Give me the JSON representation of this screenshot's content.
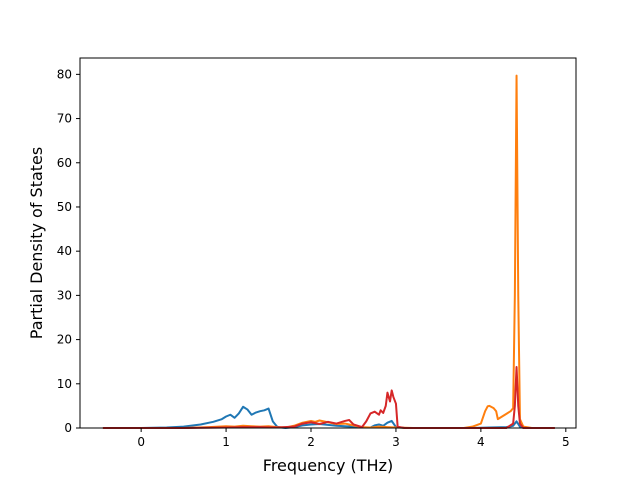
{
  "chart_data": {
    "type": "line",
    "title": "",
    "xlabel": "Frequency (THz)",
    "ylabel": "Partial Density of States",
    "xlim": [
      -0.72,
      5.12
    ],
    "ylim": [
      0,
      83.7
    ],
    "xticks": [
      0,
      1,
      2,
      3,
      4,
      5
    ],
    "yticks": [
      0,
      10,
      20,
      30,
      40,
      50,
      60,
      70,
      80
    ],
    "grid": false,
    "legend": "none",
    "series": [
      {
        "color": "#1f77b4",
        "x": [
          -0.45,
          0.0,
          0.3,
          0.5,
          0.7,
          0.85,
          0.95,
          1.0,
          1.05,
          1.1,
          1.15,
          1.2,
          1.25,
          1.3,
          1.35,
          1.4,
          1.45,
          1.5,
          1.55,
          1.6,
          1.65,
          1.7,
          1.8,
          1.9,
          2.0,
          2.1,
          2.2,
          2.3,
          2.4,
          2.5,
          2.6,
          2.7,
          2.75,
          2.8,
          2.85,
          2.9,
          2.95,
          3.0,
          3.1,
          3.5,
          3.9,
          4.1,
          4.3,
          4.38,
          4.42,
          4.46,
          4.5,
          4.7,
          4.87
        ],
        "values": [
          0,
          0,
          0.1,
          0.3,
          0.8,
          1.4,
          2.0,
          2.6,
          3.0,
          2.3,
          3.3,
          4.8,
          4.2,
          3.0,
          3.5,
          3.8,
          4.0,
          4.4,
          1.5,
          0.3,
          0.1,
          0.0,
          0.2,
          0.6,
          0.8,
          0.9,
          0.7,
          0.5,
          0.4,
          0.3,
          0.1,
          0.1,
          0.6,
          0.8,
          0.5,
          1.2,
          1.6,
          0.2,
          0,
          0,
          0,
          0.1,
          0.2,
          0.5,
          1.5,
          0.3,
          0,
          0,
          0
        ]
      },
      {
        "color": "#ff7f0e",
        "x": [
          -0.45,
          0.5,
          0.8,
          1.0,
          1.1,
          1.2,
          1.3,
          1.4,
          1.5,
          1.6,
          1.7,
          1.8,
          1.9,
          2.0,
          2.05,
          2.1,
          2.2,
          2.3,
          2.4,
          2.5,
          2.6,
          2.7,
          2.8,
          2.9,
          3.0,
          3.2,
          3.5,
          3.8,
          3.9,
          4.0,
          4.05,
          4.08,
          4.1,
          4.15,
          4.18,
          4.2,
          4.25,
          4.3,
          4.35,
          4.38,
          4.4,
          4.42,
          4.44,
          4.46,
          4.5,
          4.6,
          4.87
        ],
        "values": [
          0,
          0,
          0.2,
          0.4,
          0.3,
          0.5,
          0.4,
          0.3,
          0.4,
          0.2,
          0.1,
          0.5,
          1.2,
          1.6,
          1.4,
          1.7,
          1.3,
          0.9,
          1.0,
          0.6,
          0.2,
          0.1,
          0.3,
          0.2,
          0.1,
          0,
          0,
          0,
          0.3,
          1.0,
          3.8,
          4.9,
          5.0,
          4.5,
          3.8,
          2.0,
          2.6,
          3.2,
          3.8,
          4.5,
          30.0,
          79.7,
          30.0,
          2.0,
          0.3,
          0,
          0
        ]
      },
      {
        "color": "#d62728",
        "x": [
          -0.45,
          0.5,
          1.0,
          1.2,
          1.4,
          1.6,
          1.8,
          1.9,
          2.0,
          2.1,
          2.2,
          2.3,
          2.4,
          2.45,
          2.5,
          2.6,
          2.65,
          2.7,
          2.75,
          2.8,
          2.82,
          2.85,
          2.88,
          2.9,
          2.93,
          2.95,
          2.97,
          3.0,
          3.02,
          3.1,
          3.5,
          4.0,
          4.3,
          4.38,
          4.4,
          4.42,
          4.44,
          4.46,
          4.5,
          4.87
        ],
        "values": [
          0,
          0,
          0.1,
          0.2,
          0.2,
          0.1,
          0.3,
          1.0,
          1.3,
          0.9,
          1.4,
          1.0,
          1.6,
          1.8,
          0.8,
          0.2,
          1.5,
          3.3,
          3.7,
          3.0,
          4.0,
          3.4,
          5.0,
          8.0,
          6.0,
          8.5,
          7.0,
          5.5,
          0.3,
          0,
          0,
          0,
          0,
          1.0,
          5.0,
          13.8,
          5.0,
          1.0,
          0,
          0
        ]
      }
    ]
  }
}
